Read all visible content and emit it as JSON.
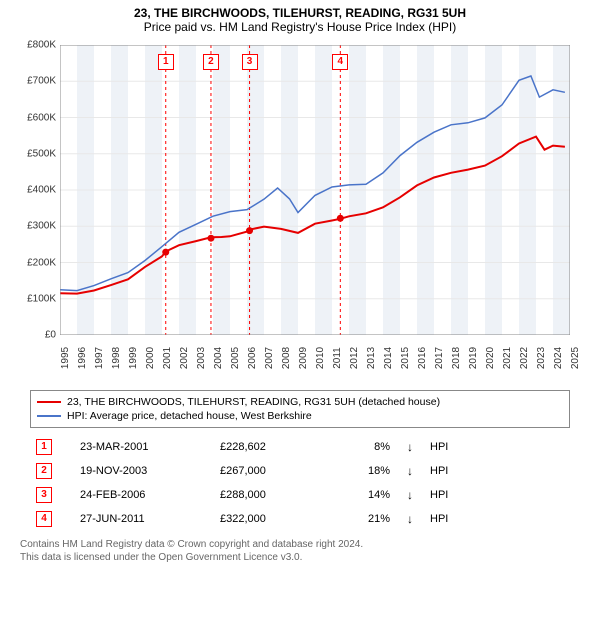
{
  "titles": {
    "line1": "23, THE BIRCHWOODS, TILEHURST, READING, RG31 5UH",
    "line2": "Price paid vs. HM Land Registry's House Price Index (HPI)"
  },
  "chart": {
    "type": "line",
    "background_color": "#ffffff",
    "grid_color": "#e8e8e8",
    "yaxis": {
      "min": 0,
      "max": 800000,
      "tick_step": 100000,
      "ticks": [
        0,
        100000,
        200000,
        300000,
        400000,
        500000,
        600000,
        700000,
        800000
      ],
      "tick_labels": [
        "£0",
        "£100K",
        "£200K",
        "£300K",
        "£400K",
        "£500K",
        "£600K",
        "£700K",
        "£800K"
      ],
      "label_fontsize": 10
    },
    "xaxis": {
      "min": 1995,
      "max": 2025,
      "ticks": [
        1995,
        1996,
        1997,
        1998,
        1999,
        2000,
        2001,
        2002,
        2003,
        2004,
        2005,
        2006,
        2007,
        2008,
        2009,
        2010,
        2011,
        2012,
        2013,
        2014,
        2015,
        2016,
        2017,
        2018,
        2019,
        2020,
        2021,
        2022,
        2023,
        2024,
        2025
      ],
      "label_fontsize": 10,
      "band_years": [
        1996,
        1998,
        2000,
        2002,
        2004,
        2006,
        2008,
        2010,
        2012,
        2014,
        2016,
        2018,
        2020,
        2022,
        2024
      ],
      "band_color": "#eef2f7"
    },
    "series": {
      "price_paid": {
        "color": "#e60000",
        "width": 2,
        "points": [
          [
            1995.0,
            115000
          ],
          [
            1996.0,
            117000
          ],
          [
            1997.0,
            122000
          ],
          [
            1998.0,
            135000
          ],
          [
            1999.0,
            155000
          ],
          [
            2000.0,
            190000
          ],
          [
            2001.0,
            215000
          ],
          [
            2001.22,
            228602
          ],
          [
            2002.0,
            250000
          ],
          [
            2003.0,
            260000
          ],
          [
            2003.88,
            267000
          ],
          [
            2004.5,
            270000
          ],
          [
            2005.0,
            275000
          ],
          [
            2006.0,
            285000
          ],
          [
            2006.15,
            288000
          ],
          [
            2007.0,
            300000
          ],
          [
            2008.0,
            295000
          ],
          [
            2009.0,
            280000
          ],
          [
            2010.0,
            305000
          ],
          [
            2011.0,
            318000
          ],
          [
            2011.49,
            322000
          ],
          [
            2012.0,
            325000
          ],
          [
            2013.0,
            335000
          ],
          [
            2014.0,
            355000
          ],
          [
            2015.0,
            380000
          ],
          [
            2016.0,
            410000
          ],
          [
            2017.0,
            435000
          ],
          [
            2018.0,
            450000
          ],
          [
            2019.0,
            455000
          ],
          [
            2020.0,
            465000
          ],
          [
            2021.0,
            495000
          ],
          [
            2022.0,
            530000
          ],
          [
            2023.0,
            545000
          ],
          [
            2023.5,
            510000
          ],
          [
            2024.0,
            525000
          ],
          [
            2024.7,
            520000
          ]
        ]
      },
      "hpi": {
        "color": "#4a74c9",
        "width": 1.5,
        "points": [
          [
            1995.0,
            125000
          ],
          [
            1996.0,
            128000
          ],
          [
            1997.0,
            135000
          ],
          [
            1998.0,
            150000
          ],
          [
            1999.0,
            175000
          ],
          [
            2000.0,
            210000
          ],
          [
            2001.0,
            240000
          ],
          [
            2002.0,
            280000
          ],
          [
            2003.0,
            310000
          ],
          [
            2004.0,
            330000
          ],
          [
            2005.0,
            335000
          ],
          [
            2006.0,
            345000
          ],
          [
            2007.0,
            380000
          ],
          [
            2007.8,
            405000
          ],
          [
            2008.5,
            370000
          ],
          [
            2009.0,
            340000
          ],
          [
            2010.0,
            390000
          ],
          [
            2011.0,
            405000
          ],
          [
            2012.0,
            410000
          ],
          [
            2013.0,
            420000
          ],
          [
            2014.0,
            450000
          ],
          [
            2015.0,
            490000
          ],
          [
            2016.0,
            530000
          ],
          [
            2017.0,
            565000
          ],
          [
            2018.0,
            580000
          ],
          [
            2019.0,
            580000
          ],
          [
            2020.0,
            600000
          ],
          [
            2021.0,
            640000
          ],
          [
            2022.0,
            700000
          ],
          [
            2022.7,
            710000
          ],
          [
            2023.2,
            660000
          ],
          [
            2024.0,
            680000
          ],
          [
            2024.7,
            665000
          ]
        ]
      }
    },
    "event_markers": [
      {
        "n": "1",
        "year": 2001.22,
        "value": 228602,
        "line_color": "#f00"
      },
      {
        "n": "2",
        "year": 2003.88,
        "value": 267000,
        "line_color": "#f00"
      },
      {
        "n": "3",
        "year": 2006.15,
        "value": 288000,
        "line_color": "#f00"
      },
      {
        "n": "4",
        "year": 2011.49,
        "value": 322000,
        "line_color": "#f00"
      }
    ]
  },
  "legend": {
    "items": [
      {
        "color": "#e60000",
        "text": "23, THE BIRCHWOODS, TILEHURST, READING, RG31 5UH (detached house)"
      },
      {
        "color": "#4a74c9",
        "text": "HPI: Average price, detached house, West Berkshire"
      }
    ]
  },
  "sales_table": {
    "rows": [
      {
        "n": "1",
        "date": "23-MAR-2001",
        "price": "£228,602",
        "diff": "8%",
        "arrow": "↓",
        "vs": "HPI"
      },
      {
        "n": "2",
        "date": "19-NOV-2003",
        "price": "£267,000",
        "diff": "18%",
        "arrow": "↓",
        "vs": "HPI"
      },
      {
        "n": "3",
        "date": "24-FEB-2006",
        "price": "£288,000",
        "diff": "14%",
        "arrow": "↓",
        "vs": "HPI"
      },
      {
        "n": "4",
        "date": "27-JUN-2011",
        "price": "£322,000",
        "diff": "21%",
        "arrow": "↓",
        "vs": "HPI"
      }
    ]
  },
  "footer": {
    "line1": "Contains HM Land Registry data © Crown copyright and database right 2024.",
    "line2": "This data is licensed under the Open Government Licence v3.0."
  }
}
